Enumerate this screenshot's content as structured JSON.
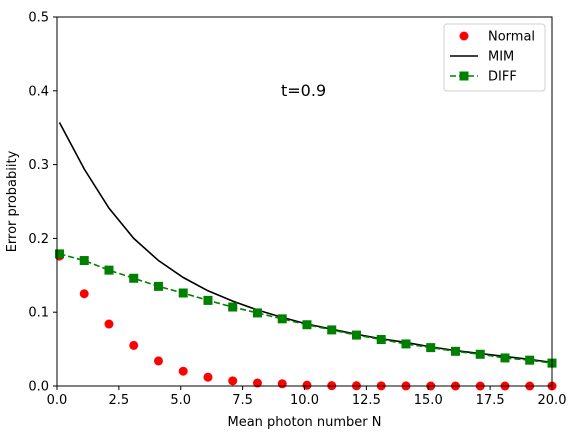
{
  "chart_data": {
    "type": "line",
    "xlabel": "Mean photon number N",
    "ylabel": "Error probabiity",
    "xlim": [
      0,
      20
    ],
    "ylim": [
      0,
      0.5
    ],
    "xticks": [
      "0.0",
      "2.5",
      "5.0",
      "7.5",
      "10.0",
      "12.5",
      "15.0",
      "17.5",
      "20.0"
    ],
    "yticks": [
      "0.0",
      "0.1",
      "0.2",
      "0.3",
      "0.4",
      "0.5"
    ],
    "annotation": "t=0.9",
    "legend_position": "top-right",
    "grid": false,
    "series": [
      {
        "name": "Normal",
        "style": "markers-circle",
        "color": "#ff0000",
        "x": [
          0.1,
          1.1,
          2.1,
          3.1,
          4.1,
          5.1,
          6.1,
          7.1,
          8.1,
          9.1,
          10.1,
          11.1,
          12.1,
          13.1,
          14.1,
          15.1,
          16.1,
          17.1,
          18.1,
          19.1,
          20.0
        ],
        "y": [
          0.176,
          0.125,
          0.084,
          0.055,
          0.034,
          0.02,
          0.012,
          0.007,
          0.004,
          0.003,
          0.001,
          0.0005,
          0.0003,
          0.0002,
          0.0001,
          0.0,
          0.0,
          0.0,
          0.0,
          0.0,
          0.0
        ]
      },
      {
        "name": "MIM",
        "style": "solid-line",
        "color": "#000000",
        "x": [
          0.1,
          1.1,
          2.1,
          3.1,
          4.1,
          5.1,
          6.1,
          7.1,
          8.1,
          9.1,
          10.1,
          11.1,
          12.1,
          13.1,
          14.1,
          15.1,
          16.1,
          17.1,
          18.1,
          19.1,
          20.0
        ],
        "y": [
          0.357,
          0.294,
          0.241,
          0.2,
          0.17,
          0.147,
          0.129,
          0.115,
          0.103,
          0.093,
          0.084,
          0.077,
          0.07,
          0.064,
          0.059,
          0.053,
          0.048,
          0.044,
          0.04,
          0.036,
          0.032
        ]
      },
      {
        "name": "DIFF",
        "style": "dashed-line-square",
        "color": "#008000",
        "x": [
          0.1,
          1.1,
          2.1,
          3.1,
          4.1,
          5.1,
          6.1,
          7.1,
          8.1,
          9.1,
          10.1,
          11.1,
          12.1,
          13.1,
          14.1,
          15.1,
          16.1,
          17.1,
          18.1,
          19.1,
          20.0
        ],
        "y": [
          0.179,
          0.17,
          0.157,
          0.146,
          0.135,
          0.126,
          0.116,
          0.107,
          0.099,
          0.091,
          0.083,
          0.076,
          0.069,
          0.063,
          0.057,
          0.052,
          0.047,
          0.043,
          0.038,
          0.035,
          0.031
        ]
      }
    ]
  }
}
